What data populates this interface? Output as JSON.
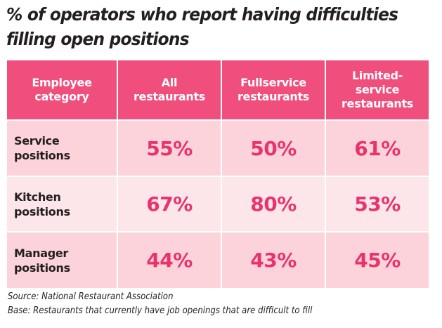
{
  "title_lines": [
    "% of operators who report having difficulties",
    "filling open positions"
  ],
  "chart_data": {
    "type": "table",
    "title": "% of operators who report having difficulties filling open positions",
    "columns": [
      [
        "Employee",
        "category"
      ],
      [
        "All",
        "restaurants"
      ],
      [
        "Fullservice",
        "restaurants"
      ],
      [
        "Limited-",
        "service",
        "restaurants"
      ]
    ],
    "rows": [
      {
        "label": [
          "Service",
          "positions"
        ],
        "values": [
          "55%",
          "50%",
          "61%"
        ]
      },
      {
        "label": [
          "Kitchen",
          "positions"
        ],
        "values": [
          "67%",
          "80%",
          "53%"
        ]
      },
      {
        "label": [
          "Manager",
          "positions"
        ],
        "values": [
          "44%",
          "43%",
          "45%"
        ]
      }
    ],
    "numeric_values": [
      [
        55,
        50,
        61
      ],
      [
        67,
        80,
        53
      ],
      [
        44,
        43,
        45
      ]
    ]
  },
  "notes": {
    "source": "Source: National Restaurant Association",
    "base": "Base: Restaurants that currently have job openings that are difficult to fill"
  },
  "colors": {
    "header": "#f04e7c",
    "row_light": "#fcd3da",
    "row_lighter": "#fde6ea",
    "value_text": "#e8336e",
    "label_text": "#231f20"
  }
}
